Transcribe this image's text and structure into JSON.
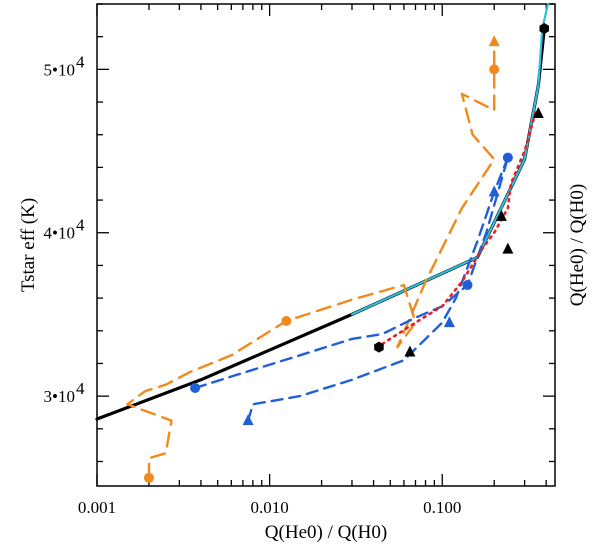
{
  "chart_data": {
    "type": "line",
    "title": "",
    "xlabel": "Q(He0) / Q(H0)",
    "ylabel": "Tstar eff (K)",
    "ylabel_right": "Q(He0) / Q(H0)",
    "xscale": "log",
    "xlim": [
      0.001,
      0.45
    ],
    "ylim": [
      24500,
      54000
    ],
    "xticks": [
      {
        "value": 0.001,
        "label": "0.001"
      },
      {
        "value": 0.01,
        "label": "0.010"
      },
      {
        "value": 0.1,
        "label": "0.100"
      }
    ],
    "yticks": [
      {
        "value": 30000,
        "label": "3•10",
        "exp": "4"
      },
      {
        "value": 40000,
        "label": "4•10",
        "exp": "4"
      },
      {
        "value": 50000,
        "label": "5•10",
        "exp": "4"
      }
    ],
    "series": [
      {
        "name": "black-solid",
        "color": "#000000",
        "dash": "solid",
        "width": 3.2,
        "x": [
          0.001,
          0.004,
          0.03,
          0.16,
          0.3,
          0.36,
          0.39
        ],
        "y": [
          28600,
          31000,
          35000,
          38500,
          44500,
          49000,
          52500
        ],
        "markers": []
      },
      {
        "name": "cyan-solid",
        "color": "#2ebfe0",
        "dash": "solid",
        "width": 2.2,
        "x": [
          0.03,
          0.16,
          0.3,
          0.36,
          0.38,
          0.41
        ],
        "y": [
          35000,
          38500,
          44500,
          49000,
          52500,
          54000
        ],
        "markers": []
      },
      {
        "name": "orange-dashed",
        "color": "#f08a1c",
        "dash": "14 8",
        "width": 2.4,
        "x": [
          0.002,
          0.002,
          0.0025,
          0.0027,
          0.0015,
          0.0019,
          0.0025,
          0.0035,
          0.006,
          0.0125,
          0.03,
          0.06,
          0.07,
          0.055,
          0.08,
          0.13,
          0.2,
          0.15,
          0.13,
          0.2,
          0.2,
          0.2
        ],
        "y": [
          25000,
          26200,
          26500,
          28500,
          29500,
          30300,
          30700,
          31500,
          32500,
          34600,
          35900,
          36800,
          34500,
          33000,
          37000,
          41500,
          44500,
          46000,
          48500,
          47500,
          50000,
          51700
        ],
        "markers": [
          {
            "x": 0.002,
            "y": 25000,
            "shape": "circle"
          },
          {
            "x": 0.0125,
            "y": 34600,
            "shape": "circle"
          },
          {
            "x": 0.2,
            "y": 50000,
            "shape": "circle"
          },
          {
            "x": 0.2,
            "y": 51700,
            "shape": "triangle"
          }
        ]
      },
      {
        "name": "blue-dashed",
        "color": "#1f5fd8",
        "dash": "11 7",
        "width": 2.4,
        "x": [
          0.0075,
          0.008,
          0.015,
          0.03,
          0.06,
          0.1,
          0.12,
          0.16,
          0.2,
          0.24
        ],
        "y": [
          28500,
          29500,
          30000,
          31000,
          32200,
          34500,
          36000,
          39500,
          42500,
          44600
        ],
        "markers": [
          {
            "x": 0.0075,
            "y": 28500,
            "shape": "triangle"
          },
          {
            "x": 0.0037,
            "y": 30500,
            "shape": "circle"
          },
          {
            "x": 0.14,
            "y": 36800,
            "shape": "circle"
          },
          {
            "x": 0.24,
            "y": 44600,
            "shape": "circle"
          },
          {
            "x": 0.11,
            "y": 34500,
            "shape": "triangle"
          },
          {
            "x": 0.2,
            "y": 42500,
            "shape": "triangle"
          }
        ]
      },
      {
        "name": "blue-dashed-lower",
        "color": "#1f5fd8",
        "dash": "11 7",
        "width": 2.4,
        "x": [
          0.0037,
          0.006,
          0.015,
          0.03,
          0.045,
          0.07,
          0.1,
          0.14,
          0.18,
          0.24
        ],
        "y": [
          30500,
          31200,
          32500,
          33500,
          33800,
          34800,
          35500,
          36800,
          40000,
          44600
        ],
        "markers": []
      },
      {
        "name": "red-dotted",
        "color": "#e8202a",
        "dash": "2 5",
        "width": 2.6,
        "x": [
          0.045,
          0.07,
          0.1,
          0.13,
          0.17,
          0.2,
          0.24,
          0.25,
          0.3,
          0.35
        ],
        "y": [
          33200,
          34500,
          35500,
          37000,
          39000,
          40000,
          41500,
          43000,
          45000,
          47500
        ],
        "markers": []
      },
      {
        "name": "black-markers",
        "color": "#000000",
        "dash": "none",
        "width": 0,
        "x": [],
        "y": [],
        "markers": [
          {
            "x": 0.043,
            "y": 33000,
            "shape": "hexagon"
          },
          {
            "x": 0.065,
            "y": 32700,
            "shape": "triangle"
          },
          {
            "x": 0.24,
            "y": 39000,
            "shape": "triangle"
          },
          {
            "x": 0.22,
            "y": 41000,
            "shape": "triangle"
          },
          {
            "x": 0.36,
            "y": 47300,
            "shape": "triangle"
          },
          {
            "x": 0.39,
            "y": 52500,
            "shape": "hexagon"
          }
        ]
      }
    ]
  }
}
